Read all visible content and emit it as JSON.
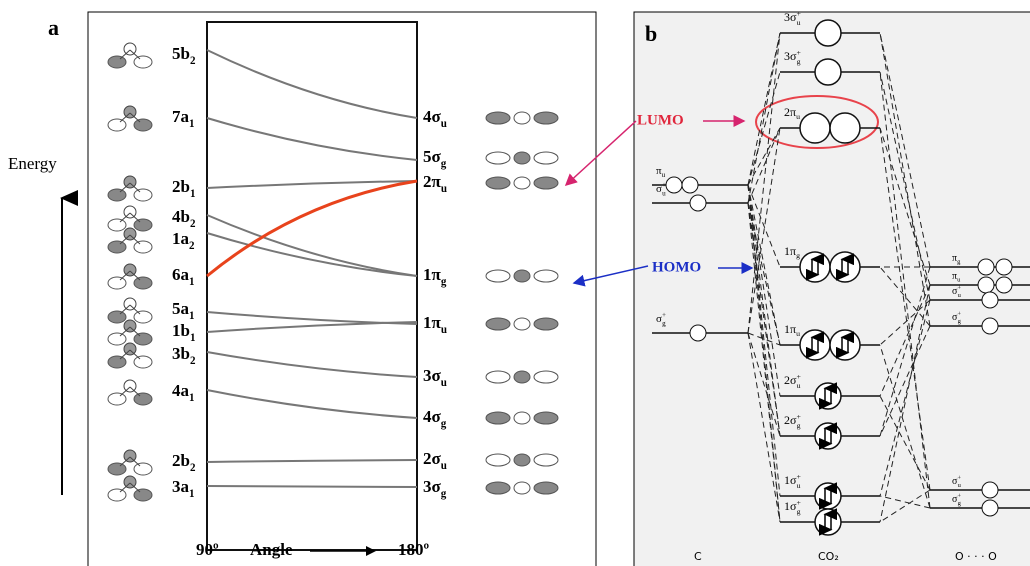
{
  "panel_a": {
    "label": "a",
    "y_axis_label": "Energy",
    "bent_levels": [
      {
        "text": "5b",
        "sub": "2"
      },
      {
        "text": "7a",
        "sub": "1"
      },
      {
        "text": "2b",
        "sub": "1"
      },
      {
        "text": "4b",
        "sub": "2"
      },
      {
        "text": "1a",
        "sub": "2"
      },
      {
        "text": "6a",
        "sub": "1"
      },
      {
        "text": "5a",
        "sub": "1"
      },
      {
        "text": "1b",
        "sub": "1"
      },
      {
        "text": "3b",
        "sub": "2"
      },
      {
        "text": "4a",
        "sub": "1"
      },
      {
        "text": "2b",
        "sub": "2"
      },
      {
        "text": "3a",
        "sub": "1"
      }
    ],
    "linear_levels": [
      {
        "text": "4σ",
        "sub": "u"
      },
      {
        "text": "5σ",
        "sub": "g"
      },
      {
        "text": "2π",
        "sub": "u"
      },
      {
        "text": "1π",
        "sub": "g"
      },
      {
        "text": "1π",
        "sub": "u"
      },
      {
        "text": "3σ",
        "sub": "u"
      },
      {
        "text": "4σ",
        "sub": "g"
      },
      {
        "text": "2σ",
        "sub": "u"
      },
      {
        "text": "3σ",
        "sub": "g"
      }
    ],
    "x_axis": {
      "left": "90º",
      "title": "Angle",
      "right": "180º"
    }
  },
  "panel_b": {
    "label": "b",
    "lumo": "LUMO",
    "homo": "HOMO",
    "c_levels": [
      {
        "text": "π",
        "sub": "u"
      },
      {
        "text": "σ",
        "sub": "u",
        "sup": "+"
      },
      {
        "text": "σ",
        "sub": "g",
        "sup": "+"
      }
    ],
    "co2_levels": [
      {
        "text": "3σ",
        "sub": "u",
        "sup": "+"
      },
      {
        "text": "3σ",
        "sub": "g",
        "sup": "+"
      },
      {
        "text": "2π",
        "sub": "u"
      },
      {
        "text": "1π",
        "sub": "g"
      },
      {
        "text": "1π",
        "sub": "u"
      },
      {
        "text": "2σ",
        "sub": "u",
        "sup": "+"
      },
      {
        "text": "2σ",
        "sub": "g",
        "sup": "+"
      },
      {
        "text": "1σ",
        "sub": "u",
        "sup": "+"
      },
      {
        "text": "1σ",
        "sub": "g",
        "sup": "+"
      }
    ],
    "o_levels": [
      {
        "text": "π",
        "sub": "g"
      },
      {
        "text": "π",
        "sub": "u"
      },
      {
        "text": "σ",
        "sub": "u",
        "sup": "+"
      },
      {
        "text": "σ",
        "sub": "g",
        "sup": "+"
      },
      {
        "text": "σ",
        "sub": "u",
        "sup": "+"
      },
      {
        "text": "σ",
        "sub": "g",
        "sup": "+"
      }
    ],
    "columns": [
      "C",
      "CO₂",
      "O · · · O"
    ]
  }
}
